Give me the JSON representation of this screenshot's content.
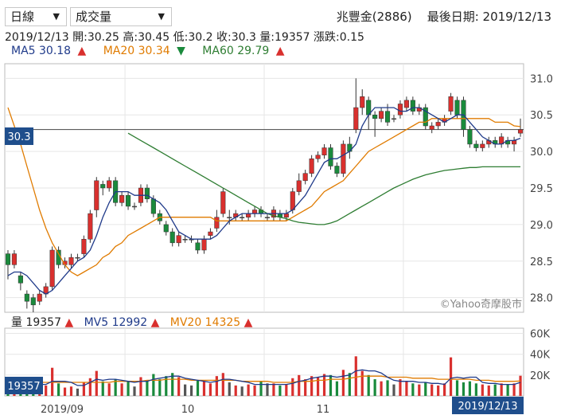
{
  "controls": {
    "period": "日線",
    "indicator": "成交量"
  },
  "header": {
    "stock": "兆豐金(2886)",
    "last_date_label": "最後日期: 2019/12/13"
  },
  "ohlc_line": "2019/12/13 開:30.25 高:30.45 低:30.2 收:30.3 量:19357 漲跌:0.15",
  "ma_legend": [
    {
      "label": "MA5 30.18",
      "arrow": "▲",
      "color": "#1f3a8a",
      "arrow_color": "#d9302e"
    },
    {
      "label": "MA20 30.34",
      "arrow": "▼",
      "color": "#e07b00",
      "arrow_color": "#1a8a3c"
    },
    {
      "label": "MA60 29.79",
      "arrow": "▲",
      "color": "#2e7d32",
      "arrow_color": "#d9302e"
    }
  ],
  "vol_legend": [
    {
      "label": "量 19357",
      "arrow": "▲",
      "color": "#222",
      "arrow_color": "#d9302e"
    },
    {
      "label": "MV5 12992",
      "arrow": "▲",
      "color": "#1f3a8a",
      "arrow_color": "#d9302e"
    },
    {
      "label": "MV20 14325",
      "arrow": "▲",
      "color": "#e07b00",
      "arrow_color": "#d9302e"
    }
  ],
  "watermark": "©Yahoo奇摩股市",
  "price_tag": "30.3",
  "volume_tag": "19357",
  "date_tag": "2019/12/13",
  "colors": {
    "up": "#d9302e",
    "down": "#1a8a3c",
    "neutral": "#555555",
    "ma5": "#1f3a8a",
    "ma20": "#e07b00",
    "ma60": "#2e7d32",
    "tag": "#1f4e8c"
  },
  "chart_data": {
    "type": "candlestick",
    "x_labels": [
      "2019/09",
      "10",
      "11"
    ],
    "price_ticks": [
      "31.0",
      "30.5",
      "30.0",
      "29.5",
      "29.0",
      "28.5",
      "28.0"
    ],
    "price_range": [
      27.8,
      31.2
    ],
    "volume_ticks": [
      "60K",
      "40K",
      "20K"
    ],
    "volume_range": [
      0,
      65000
    ],
    "candles": [
      [
        28.6,
        28.45,
        28.25,
        28.65
      ],
      [
        28.45,
        28.6,
        28.4,
        28.65
      ],
      [
        28.3,
        28.2,
        28.1,
        28.35
      ],
      [
        28.05,
        27.95,
        27.85,
        28.1
      ],
      [
        28.0,
        27.9,
        27.8,
        28.05
      ],
      [
        27.95,
        28.05,
        27.9,
        28.1
      ],
      [
        28.05,
        28.15,
        28.0,
        28.2
      ],
      [
        28.15,
        28.65,
        28.1,
        28.7
      ],
      [
        28.65,
        28.45,
        28.4,
        28.7
      ],
      [
        28.45,
        28.5,
        28.4,
        28.55
      ],
      [
        28.45,
        28.55,
        28.4,
        28.6
      ],
      [
        28.55,
        28.55,
        28.5,
        28.6
      ],
      [
        28.6,
        28.8,
        28.55,
        28.85
      ],
      [
        28.8,
        29.15,
        28.75,
        29.2
      ],
      [
        29.2,
        29.6,
        29.1,
        29.65
      ],
      [
        29.55,
        29.5,
        29.4,
        29.6
      ],
      [
        29.5,
        29.6,
        29.45,
        29.65
      ],
      [
        29.6,
        29.3,
        29.25,
        29.65
      ],
      [
        29.3,
        29.4,
        29.25,
        29.45
      ],
      [
        29.4,
        29.25,
        29.2,
        29.45
      ],
      [
        29.25,
        29.25,
        29.2,
        29.3
      ],
      [
        29.3,
        29.5,
        29.25,
        29.55
      ],
      [
        29.5,
        29.35,
        29.3,
        29.55
      ],
      [
        29.35,
        29.15,
        29.1,
        29.4
      ],
      [
        29.15,
        29.05,
        29.0,
        29.2
      ],
      [
        29.0,
        28.9,
        28.85,
        29.05
      ],
      [
        28.9,
        28.75,
        28.7,
        28.95
      ],
      [
        28.75,
        28.85,
        28.7,
        28.9
      ],
      [
        28.8,
        28.8,
        28.75,
        28.85
      ],
      [
        28.8,
        28.8,
        28.75,
        28.85
      ],
      [
        28.75,
        28.65,
        28.6,
        28.8
      ],
      [
        28.65,
        28.8,
        28.6,
        28.85
      ],
      [
        28.85,
        28.9,
        28.8,
        28.95
      ],
      [
        28.95,
        29.1,
        28.9,
        29.2
      ],
      [
        29.15,
        29.45,
        29.1,
        29.5
      ],
      [
        29.1,
        29.1,
        29.0,
        29.2
      ],
      [
        29.1,
        29.15,
        29.05,
        29.2
      ],
      [
        29.1,
        29.1,
        29.05,
        29.15
      ],
      [
        29.1,
        29.15,
        29.05,
        29.2
      ],
      [
        29.15,
        29.2,
        29.1,
        29.25
      ],
      [
        29.2,
        29.15,
        29.1,
        29.25
      ],
      [
        29.1,
        29.1,
        29.05,
        29.15
      ],
      [
        29.1,
        29.2,
        29.05,
        29.25
      ],
      [
        29.15,
        29.1,
        29.05,
        29.2
      ],
      [
        29.1,
        29.15,
        29.05,
        29.2
      ],
      [
        29.2,
        29.45,
        29.15,
        29.5
      ],
      [
        29.45,
        29.6,
        29.4,
        29.7
      ],
      [
        29.6,
        29.7,
        29.55,
        29.75
      ],
      [
        29.7,
        29.9,
        29.65,
        29.95
      ],
      [
        29.9,
        29.95,
        29.85,
        30.0
      ],
      [
        29.95,
        30.05,
        29.9,
        30.1
      ],
      [
        30.05,
        29.8,
        29.75,
        30.1
      ],
      [
        29.8,
        29.7,
        29.65,
        29.85
      ],
      [
        29.7,
        30.1,
        29.65,
        30.15
      ],
      [
        30.1,
        30.0,
        29.9,
        30.2
      ],
      [
        30.3,
        30.6,
        30.25,
        31.0
      ],
      [
        30.6,
        30.75,
        30.5,
        30.85
      ],
      [
        30.7,
        30.5,
        30.3,
        30.75
      ],
      [
        30.5,
        30.45,
        30.2,
        30.55
      ],
      [
        30.45,
        30.55,
        30.4,
        30.6
      ],
      [
        30.55,
        30.4,
        30.35,
        30.65
      ],
      [
        30.45,
        30.45,
        30.4,
        30.5
      ],
      [
        30.5,
        30.65,
        30.45,
        30.7
      ],
      [
        30.6,
        30.7,
        30.55,
        30.75
      ],
      [
        30.7,
        30.55,
        30.5,
        30.75
      ],
      [
        30.55,
        30.6,
        30.5,
        30.65
      ],
      [
        30.6,
        30.35,
        30.3,
        30.65
      ],
      [
        30.3,
        30.35,
        30.25,
        30.4
      ],
      [
        30.35,
        30.4,
        30.3,
        30.45
      ],
      [
        30.4,
        30.45,
        30.35,
        30.5
      ],
      [
        30.55,
        30.75,
        30.5,
        30.8
      ],
      [
        30.7,
        30.5,
        30.45,
        30.75
      ],
      [
        30.7,
        30.3,
        30.2,
        30.75
      ],
      [
        30.3,
        30.1,
        30.05,
        30.35
      ],
      [
        30.1,
        30.05,
        30.0,
        30.15
      ],
      [
        30.05,
        30.1,
        30.0,
        30.15
      ],
      [
        30.1,
        30.15,
        30.05,
        30.2
      ],
      [
        30.15,
        30.1,
        30.05,
        30.2
      ],
      [
        30.1,
        30.2,
        30.05,
        30.25
      ],
      [
        30.15,
        30.1,
        30.05,
        30.2
      ],
      [
        30.1,
        30.15,
        30.0,
        30.2
      ],
      [
        30.25,
        30.3,
        30.2,
        30.45
      ]
    ],
    "volumes": [
      14000,
      9000,
      8000,
      12000,
      15000,
      9000,
      10000,
      27000,
      12000,
      8000,
      9000,
      7000,
      13000,
      17000,
      24000,
      14000,
      12000,
      16000,
      12000,
      14000,
      9000,
      18000,
      15000,
      21000,
      16000,
      19000,
      22000,
      18000,
      11000,
      10000,
      15000,
      14000,
      12000,
      19000,
      22000,
      13000,
      10000,
      9000,
      11000,
      10000,
      14000,
      12000,
      12000,
      10000,
      11000,
      17000,
      20000,
      16000,
      19000,
      18000,
      21000,
      20000,
      14000,
      25000,
      22000,
      38000,
      24000,
      20000,
      16000,
      14000,
      15000,
      11000,
      16000,
      14000,
      12000,
      11000,
      13000,
      11000,
      10000,
      12000,
      37000,
      15000,
      13000,
      14000,
      12000,
      11000,
      10000,
      11000,
      12000,
      11000,
      12000,
      19357
    ],
    "ma5": [
      28.3,
      28.35,
      28.35,
      28.3,
      28.2,
      28.1,
      28.05,
      28.1,
      28.2,
      28.3,
      28.4,
      28.5,
      28.55,
      28.65,
      28.85,
      29.1,
      29.3,
      29.45,
      29.45,
      29.45,
      29.4,
      29.4,
      29.4,
      29.35,
      29.3,
      29.2,
      29.05,
      28.9,
      28.85,
      28.8,
      28.8,
      28.8,
      28.8,
      28.85,
      28.95,
      29.05,
      29.1,
      29.15,
      29.15,
      29.15,
      29.15,
      29.15,
      29.15,
      29.15,
      29.15,
      29.2,
      29.3,
      29.4,
      29.55,
      29.7,
      29.85,
      29.9,
      29.9,
      29.95,
      30.0,
      30.1,
      30.35,
      30.5,
      30.6,
      30.6,
      30.6,
      30.6,
      30.55,
      30.55,
      30.6,
      30.6,
      30.55,
      30.5,
      30.45,
      30.4,
      30.45,
      30.5,
      30.5,
      30.4,
      30.3,
      30.2,
      30.15,
      30.1,
      30.1,
      30.15,
      30.15,
      30.18
    ],
    "ma20": [
      30.6,
      30.35,
      30.1,
      29.8,
      29.5,
      29.2,
      28.95,
      28.75,
      28.6,
      28.45,
      28.35,
      28.3,
      28.35,
      28.4,
      28.45,
      28.55,
      28.6,
      28.7,
      28.75,
      28.85,
      28.9,
      28.95,
      29.0,
      29.05,
      29.1,
      29.1,
      29.1,
      29.1,
      29.1,
      29.1,
      29.1,
      29.1,
      29.1,
      29.05,
      29.05,
      29.05,
      29.05,
      29.05,
      29.05,
      29.05,
      29.05,
      29.05,
      29.05,
      29.05,
      29.05,
      29.1,
      29.15,
      29.2,
      29.25,
      29.35,
      29.45,
      29.5,
      29.55,
      29.6,
      29.7,
      29.8,
      29.9,
      30.0,
      30.05,
      30.1,
      30.15,
      30.2,
      30.25,
      30.3,
      30.35,
      30.4,
      30.4,
      30.45,
      30.45,
      30.45,
      30.45,
      30.45,
      30.45,
      30.45,
      30.45,
      30.45,
      30.45,
      30.4,
      30.4,
      30.4,
      30.35,
      30.34
    ],
    "ma60_start": 19,
    "ma60": [
      30.25,
      30.2,
      30.15,
      30.1,
      30.05,
      30.0,
      29.95,
      29.9,
      29.85,
      29.8,
      29.75,
      29.7,
      29.65,
      29.6,
      29.55,
      29.5,
      29.45,
      29.4,
      29.35,
      29.3,
      29.25,
      29.2,
      29.15,
      29.12,
      29.1,
      29.08,
      29.05,
      29.03,
      29.02,
      29.01,
      29.0,
      29.0,
      29.02,
      29.05,
      29.1,
      29.15,
      29.2,
      29.25,
      29.3,
      29.35,
      29.4,
      29.45,
      29.5,
      29.54,
      29.58,
      29.62,
      29.65,
      29.68,
      29.7,
      29.72,
      29.74,
      29.75,
      29.76,
      29.77,
      29.78,
      29.78,
      29.79,
      29.79,
      29.79,
      29.79,
      29.79,
      29.79,
      29.79
    ],
    "mv5": [
      11000,
      11000,
      11000,
      11000,
      11000,
      11000,
      11000,
      14000,
      14000,
      14000,
      13000,
      10000,
      10000,
      13000,
      16000,
      15000,
      16000,
      16000,
      15000,
      14000,
      13000,
      14000,
      14000,
      16000,
      17000,
      18000,
      19000,
      19000,
      17000,
      16000,
      15000,
      14000,
      13000,
      14000,
      16000,
      16000,
      15000,
      14000,
      13000,
      11000,
      11000,
      11000,
      11000,
      11000,
      11000,
      12000,
      14000,
      15000,
      17000,
      18000,
      19000,
      19000,
      18000,
      19000,
      20000,
      24000,
      25000,
      24000,
      24000,
      22000,
      18000,
      15000,
      14000,
      14000,
      14000,
      13000,
      13000,
      12000,
      12000,
      11000,
      17000,
      18000,
      17000,
      18000,
      18000,
      13000,
      12000,
      12000,
      11000,
      11000,
      11000,
      12992
    ],
    "mv20": [
      15000,
      15000,
      14000,
      14000,
      13000,
      13000,
      13000,
      13000,
      13000,
      13000,
      13000,
      13000,
      13000,
      13000,
      13000,
      13000,
      13000,
      14000,
      14000,
      14000,
      14000,
      14000,
      15000,
      15000,
      15000,
      16000,
      16000,
      16000,
      16000,
      15000,
      15000,
      15000,
      15000,
      15000,
      15000,
      15000,
      15000,
      14000,
      14000,
      14000,
      14000,
      14000,
      13000,
      13000,
      13000,
      13000,
      14000,
      14000,
      14000,
      15000,
      15000,
      16000,
      16000,
      16000,
      17000,
      18000,
      19000,
      19000,
      19000,
      19000,
      18000,
      18000,
      18000,
      18000,
      17000,
      17000,
      17000,
      17000,
      16000,
      16000,
      16000,
      16000,
      16000,
      16000,
      15000,
      15000,
      15000,
      14000,
      14000,
      14000,
      14000,
      14325
    ]
  }
}
